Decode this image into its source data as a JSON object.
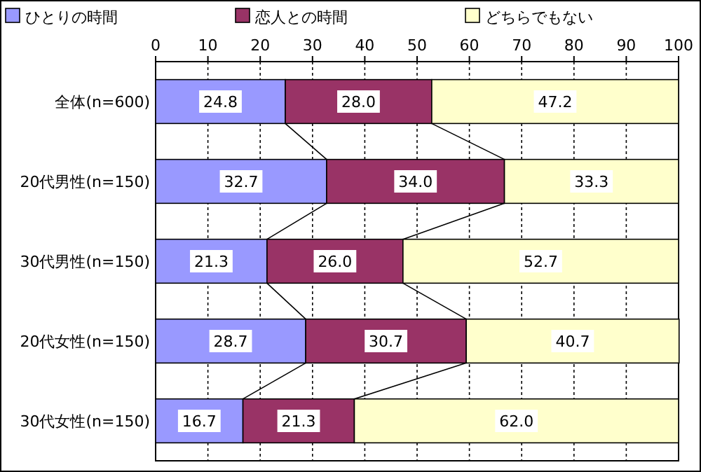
{
  "chart_data": {
    "type": "bar",
    "orientation": "horizontal",
    "stacked": true,
    "categories": [
      "全体(n=600)",
      "20代男性(n=150)",
      "30代男性(n=150)",
      "20代女性(n=150)",
      "30代女性(n=150)"
    ],
    "series": [
      {
        "name": "ひとりの時間",
        "color": "#9999ff",
        "values": [
          24.8,
          32.7,
          21.3,
          28.7,
          16.7
        ]
      },
      {
        "name": "恋人との時間",
        "color": "#993366",
        "values": [
          28.0,
          34.0,
          26.0,
          30.7,
          21.3
        ]
      },
      {
        "name": "どちらでもない",
        "color": "#ffffcc",
        "values": [
          47.2,
          33.3,
          52.7,
          40.7,
          62.0
        ]
      }
    ],
    "value_labels": [
      [
        "24.8",
        "32.7",
        "21.3",
        "28.7",
        "16.7"
      ],
      [
        "28.0",
        "34.0",
        "26.0",
        "30.7",
        "21.3"
      ],
      [
        "47.2",
        "33.3",
        "52.7",
        "40.7",
        "62.0"
      ]
    ],
    "xlim": [
      0,
      100
    ],
    "xticks": [
      0,
      10,
      20,
      30,
      40,
      50,
      60,
      70,
      80,
      90,
      100
    ],
    "grid": "x",
    "legend": "top"
  }
}
